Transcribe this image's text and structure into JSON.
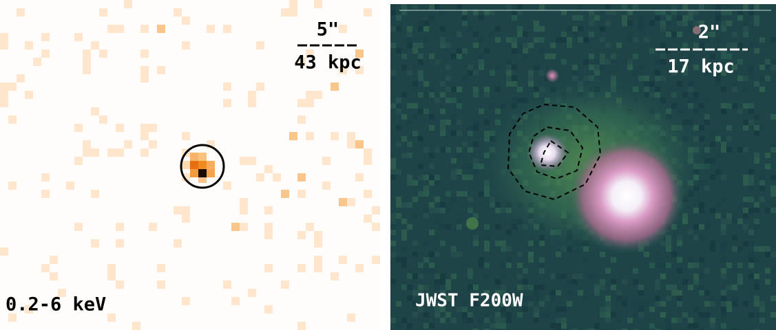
{
  "left_panel": {
    "scale_angle": "5\"",
    "scale_physical": "43 kpc",
    "band": "0.2-6 keV"
  },
  "right_panel": {
    "scale_angle": "2\"",
    "scale_physical": "17 kpc",
    "filter": "JWST F200W"
  }
}
